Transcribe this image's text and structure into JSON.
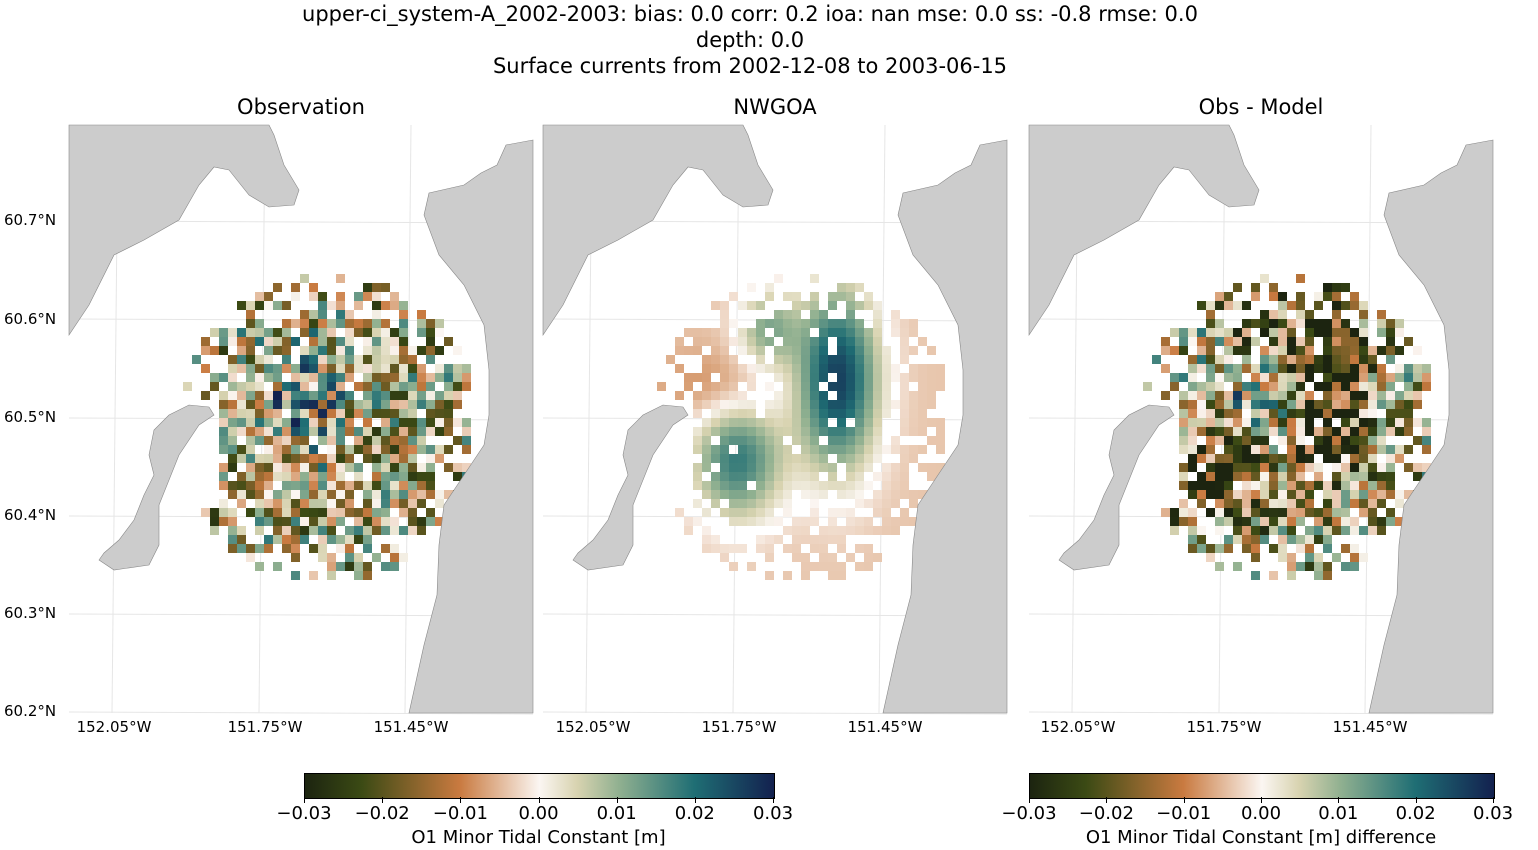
{
  "figure": {
    "title_line1": "upper-ci_system-A_2002-2003: bias: 0.0  corr: 0.2  ioa: nan  mse: 0.0  ss: -0.8  rmse: 0.0",
    "title_line2": "depth: 0.0",
    "title_line3": "Surface currents from 2002-12-08 to 2003-06-15"
  },
  "panels": [
    {
      "title": "Observation"
    },
    {
      "title": "NWGOA"
    },
    {
      "title": "Obs - Model"
    }
  ],
  "lat_labels": [
    "60.7°N",
    "60.6°N",
    "60.5°N",
    "60.4°N",
    "60.3°N",
    "60.2°N"
  ],
  "lon_labels": [
    "152.05°W",
    "151.75°W",
    "151.45°W"
  ],
  "colorbars": [
    {
      "ticks": [
        "−0.03",
        "−0.02",
        "−0.01",
        "0.00",
        "0.01",
        "0.02",
        "0.03"
      ],
      "label": "O1 Minor Tidal Constant [m]",
      "range": [
        -0.03,
        0.03
      ]
    },
    {
      "ticks": [
        "−0.03",
        "−0.02",
        "−0.01",
        "0.00",
        "0.01",
        "0.02",
        "0.03"
      ],
      "label": "O1 Minor Tidal Constant [m] difference",
      "range": [
        -0.03,
        0.03
      ]
    }
  ],
  "colors": {
    "land": "#cccccc",
    "colormap": [
      "#1c2410",
      "#3b4a14",
      "#c97a40",
      "#fbf6f2",
      "#d8d3b0",
      "#90b090",
      "#1f6e74",
      "#13214f"
    ]
  }
}
